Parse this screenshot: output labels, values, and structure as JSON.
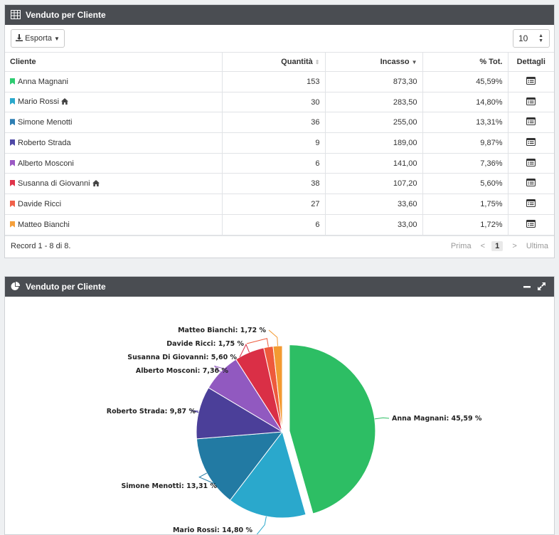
{
  "table_panel": {
    "title": "Venduto per Cliente",
    "export_label": "Esporta",
    "page_size": "10",
    "columns": {
      "cliente": "Cliente",
      "quantita": "Quantità",
      "incasso": "Incasso",
      "tot": "% Tot.",
      "dettagli": "Dettagli"
    },
    "rows": [
      {
        "cliente": "Anna Magnani",
        "quantita": "153",
        "incasso": "873,30",
        "tot": "45,59%",
        "color": "#2ecc71",
        "home": false
      },
      {
        "cliente": "Mario Rossi",
        "quantita": "30",
        "incasso": "283,50",
        "tot": "14,80%",
        "color": "#2aa8cc",
        "home": true
      },
      {
        "cliente": "Simone Menotti",
        "quantita": "36",
        "incasso": "255,00",
        "tot": "13,31%",
        "color": "#2e7fb3",
        "home": false
      },
      {
        "cliente": "Roberto Strada",
        "quantita": "9",
        "incasso": "189,00",
        "tot": "9,87%",
        "color": "#4f48a6",
        "home": false
      },
      {
        "cliente": "Alberto Mosconi",
        "quantita": "6",
        "incasso": "141,00",
        "tot": "7,36%",
        "color": "#9b59c4",
        "home": false
      },
      {
        "cliente": "Susanna di Giovanni",
        "quantita": "38",
        "incasso": "107,20",
        "tot": "5,60%",
        "color": "#e0344a",
        "home": true
      },
      {
        "cliente": "Davide Ricci",
        "quantita": "27",
        "incasso": "33,60",
        "tot": "1,75%",
        "color": "#f0614a",
        "home": false
      },
      {
        "cliente": "Matteo Bianchi",
        "quantita": "6",
        "incasso": "33,00",
        "tot": "1,72%",
        "color": "#f5a03c",
        "home": false
      }
    ],
    "footer": {
      "records": "Record 1 - 8 di 8.",
      "first": "Prima",
      "prev": "<",
      "current": "1",
      "next": ">",
      "last": "Ultima"
    }
  },
  "chart_panel": {
    "title": "Venduto per Cliente",
    "minimize_icon": "minus-icon",
    "expand_icon": "expand-icon"
  },
  "chart_data": {
    "type": "pie",
    "title": "",
    "slices": [
      {
        "label": "Anna Magnani: 45,59 %",
        "value": 45.59,
        "color": "#2dbe64",
        "exploded": true
      },
      {
        "label": "Mario Rossi: 14,80 %",
        "value": 14.8,
        "color": "#2aa8cc"
      },
      {
        "label": "Simone Menotti: 13,31 %",
        "value": 13.31,
        "color": "#227aa3"
      },
      {
        "label": "Roberto Strada: 9,87 %",
        "value": 9.87,
        "color": "#4b3f99"
      },
      {
        "label": "Alberto Mosconi: 7,36 %",
        "value": 7.36,
        "color": "#9159c0"
      },
      {
        "label": "Susanna Di Giovanni: 5,60 %",
        "value": 5.6,
        "color": "#da2f46"
      },
      {
        "label": "Davide Ricci: 1,75 %",
        "value": 1.75,
        "color": "#ee5a3c"
      },
      {
        "label": "Matteo Bianchi: 1,72 %",
        "value": 1.72,
        "color": "#f39a32"
      }
    ]
  }
}
